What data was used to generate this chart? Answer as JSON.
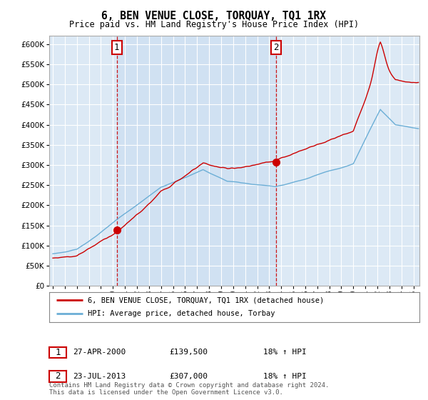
{
  "title": "6, BEN VENUE CLOSE, TORQUAY, TQ1 1RX",
  "subtitle": "Price paid vs. HM Land Registry's House Price Index (HPI)",
  "legend_line1": "6, BEN VENUE CLOSE, TORQUAY, TQ1 1RX (detached house)",
  "legend_line2": "HPI: Average price, detached house, Torbay",
  "annotation1_label": "1",
  "annotation1_date": "27-APR-2000",
  "annotation1_price": "£139,500",
  "annotation1_hpi": "18% ↑ HPI",
  "annotation2_label": "2",
  "annotation2_date": "23-JUL-2013",
  "annotation2_price": "£307,000",
  "annotation2_hpi": "18% ↑ HPI",
  "footer": "Contains HM Land Registry data © Crown copyright and database right 2024.\nThis data is licensed under the Open Government Licence v3.0.",
  "hpi_color": "#6baed6",
  "price_color": "#cc0000",
  "annotation_color": "#cc0000",
  "bg_color": "#dce9f5",
  "shade_color": "#c8ddf0",
  "grid_color": "#ffffff",
  "ylim": [
    0,
    620000
  ],
  "yticks": [
    0,
    50000,
    100000,
    150000,
    200000,
    250000,
    300000,
    350000,
    400000,
    450000,
    500000,
    550000,
    600000
  ],
  "xlim_start": 1994.7,
  "xlim_end": 2025.5,
  "sale1_x": 2000.32,
  "sale1_y": 139500,
  "sale2_x": 2013.55,
  "sale2_y": 307000
}
